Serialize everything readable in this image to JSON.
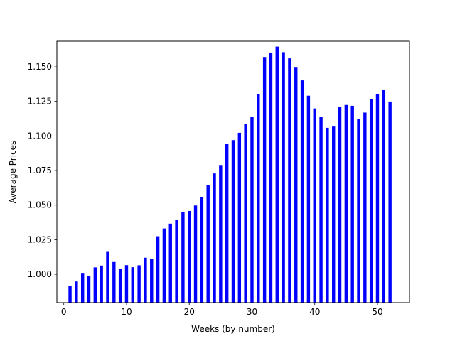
{
  "chart_data": {
    "type": "bar",
    "title": "",
    "xlabel": "Weeks (by number)",
    "ylabel": "Average Prices",
    "xlim": [
      -1.1,
      55.1
    ],
    "ylim": [
      0.9795,
      1.1685
    ],
    "xticks": [
      0,
      10,
      20,
      30,
      40,
      50
    ],
    "xtick_labels": [
      "0",
      "10",
      "20",
      "30",
      "40",
      "50"
    ],
    "yticks": [
      1.0,
      1.025,
      1.05,
      1.075,
      1.1,
      1.125,
      1.15
    ],
    "ytick_labels": [
      "1.000",
      "1.025",
      "1.050",
      "1.075",
      "1.100",
      "1.125",
      "1.150"
    ],
    "grid": false,
    "bar_color": "#0000ff",
    "bar_width": 0.5,
    "x": [
      1,
      2,
      3,
      4,
      5,
      6,
      7,
      8,
      9,
      10,
      11,
      12,
      13,
      14,
      15,
      16,
      17,
      18,
      19,
      20,
      21,
      22,
      23,
      24,
      25,
      26,
      27,
      28,
      29,
      30,
      31,
      32,
      33,
      34,
      35,
      36,
      37,
      38,
      39,
      40,
      41,
      42,
      43,
      44,
      45,
      46,
      47,
      48,
      49,
      50,
      51,
      52
    ],
    "values": [
      0.9915,
      0.9948,
      1.001,
      0.9988,
      1.005,
      1.0063,
      1.0162,
      1.0089,
      1.004,
      1.0066,
      1.0051,
      1.0065,
      1.012,
      1.0113,
      1.0275,
      1.0331,
      1.0366,
      1.0395,
      1.0449,
      1.0458,
      1.0497,
      1.0557,
      1.0646,
      1.0729,
      1.079,
      1.0945,
      1.097,
      1.1023,
      1.1089,
      1.1136,
      1.1302,
      1.1571,
      1.1603,
      1.1646,
      1.1606,
      1.1561,
      1.1494,
      1.1402,
      1.1291,
      1.1199,
      1.1137,
      1.1059,
      1.1068,
      1.1211,
      1.1224,
      1.1218,
      1.1123,
      1.1169,
      1.1269,
      1.1304,
      1.1336,
      1.1249
    ]
  }
}
